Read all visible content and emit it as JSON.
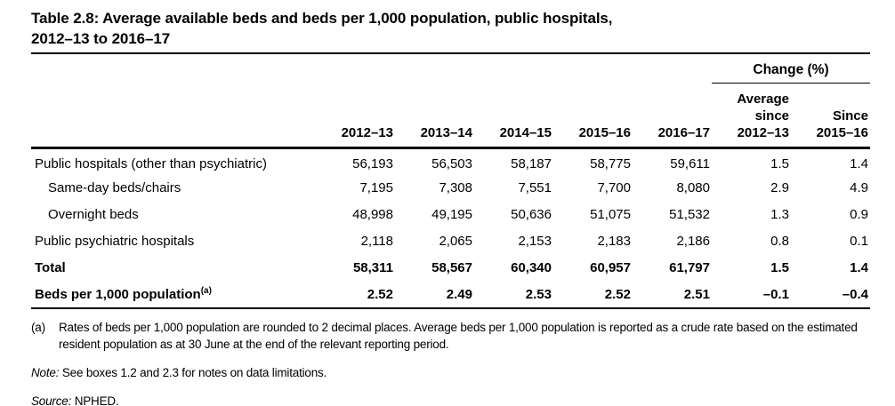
{
  "title": {
    "line1": "Table 2.8: Average available beds and beds per 1,000 population, public hospitals,",
    "line2": "2012–13 to 2016–17"
  },
  "table": {
    "change_group_label": "Change (%)",
    "year_columns": [
      "2012–13",
      "2013–14",
      "2014–15",
      "2015–16",
      "2016–17"
    ],
    "avg_change_column": {
      "line1": "Average",
      "line2": "since",
      "line3": "2012–13"
    },
    "since_change_column": {
      "line1": "Since",
      "line2": "2015–16"
    },
    "rows": [
      {
        "label": "Public hospitals (other than psychiatric)",
        "values": [
          "56,193",
          "56,503",
          "58,187",
          "58,775",
          "59,611",
          "1.5",
          "1.4"
        ]
      },
      {
        "label": "Same-day beds/chairs",
        "values": [
          "7,195",
          "7,308",
          "7,551",
          "7,700",
          "8,080",
          "2.9",
          "4.9"
        ]
      },
      {
        "label": "Overnight beds",
        "values": [
          "48,998",
          "49,195",
          "50,636",
          "51,075",
          "51,532",
          "1.3",
          "0.9"
        ]
      },
      {
        "label": "Public psychiatric hospitals",
        "values": [
          "2,118",
          "2,065",
          "2,153",
          "2,183",
          "2,186",
          "0.8",
          "0.1"
        ]
      },
      {
        "label": "Total",
        "values": [
          "58,311",
          "58,567",
          "60,340",
          "60,957",
          "61,797",
          "1.5",
          "1.4"
        ]
      },
      {
        "label": "Beds per 1,000 population",
        "superscript": "(a)",
        "values": [
          "2.52",
          "2.49",
          "2.53",
          "2.52",
          "2.51",
          "–0.1",
          "–0.4"
        ]
      }
    ]
  },
  "footnotes": {
    "a_marker": "(a)",
    "a_text": "Rates of beds per 1,000 population are rounded to 2 decimal places. Average beds per 1,000 population is reported as a crude rate based on the estimated resident population as at 30 June at the end of the relevant reporting period.",
    "note_label": "Note:",
    "note_text": "See boxes 1.2 and 2.3 for notes on data limitations.",
    "source_label": "Source:",
    "source_text": "NPHED."
  }
}
